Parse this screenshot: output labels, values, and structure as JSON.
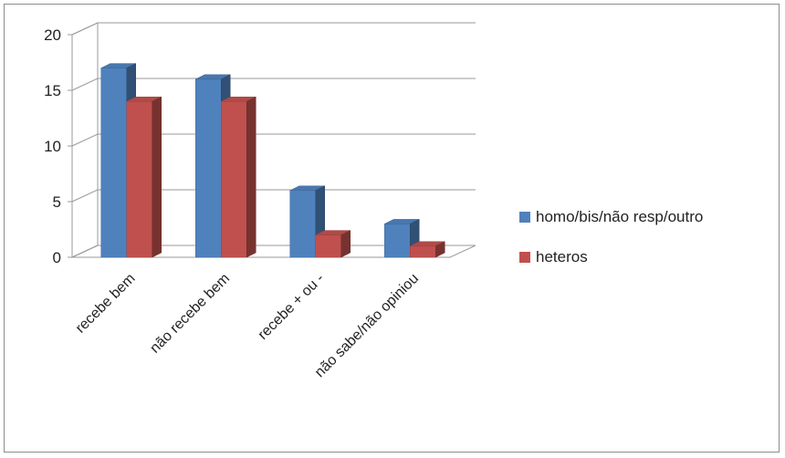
{
  "chart_data": {
    "type": "bar",
    "categories": [
      "recebe bem",
      "não recebe bem",
      "recebe + ou -",
      "não sabe/não opiniou"
    ],
    "series": [
      {
        "name": "homo/bis/não resp/outro",
        "values": [
          17,
          16,
          6,
          3
        ],
        "color": "#4f81bd"
      },
      {
        "name": "heteros",
        "values": [
          14,
          14,
          2,
          1
        ],
        "color": "#c0504d"
      }
    ],
    "yticks": [
      0,
      5,
      10,
      15,
      20
    ],
    "ylim": [
      0,
      20
    ],
    "grid": true,
    "legend_position": "right",
    "style": "3d-clustered-column"
  }
}
